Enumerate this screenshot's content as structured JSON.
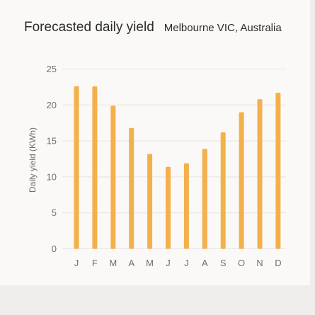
{
  "header": {
    "title": "Forecasted daily yield",
    "location": "Melbourne VIC, Australia"
  },
  "colors": {
    "bar": "#f4b04a",
    "grid": "#e6e3df",
    "text": "#2b2b2b",
    "axis_text": "#6f6f6f"
  },
  "chart_data": {
    "type": "bar",
    "title": "Forecasted daily yield",
    "subtitle": "Melbourne VIC, Australia",
    "xlabel": "",
    "ylabel": "Daily yield (KWh)",
    "ylim": [
      0,
      25
    ],
    "yticks": [
      0,
      5,
      10,
      15,
      20,
      25
    ],
    "grid": true,
    "categories": [
      "J",
      "F",
      "M",
      "A",
      "M",
      "J",
      "J",
      "A",
      "S",
      "O",
      "N",
      "D"
    ],
    "values": [
      22.6,
      22.6,
      19.9,
      16.8,
      13.2,
      11.4,
      11.9,
      13.9,
      16.2,
      19.0,
      20.8,
      21.7
    ]
  }
}
